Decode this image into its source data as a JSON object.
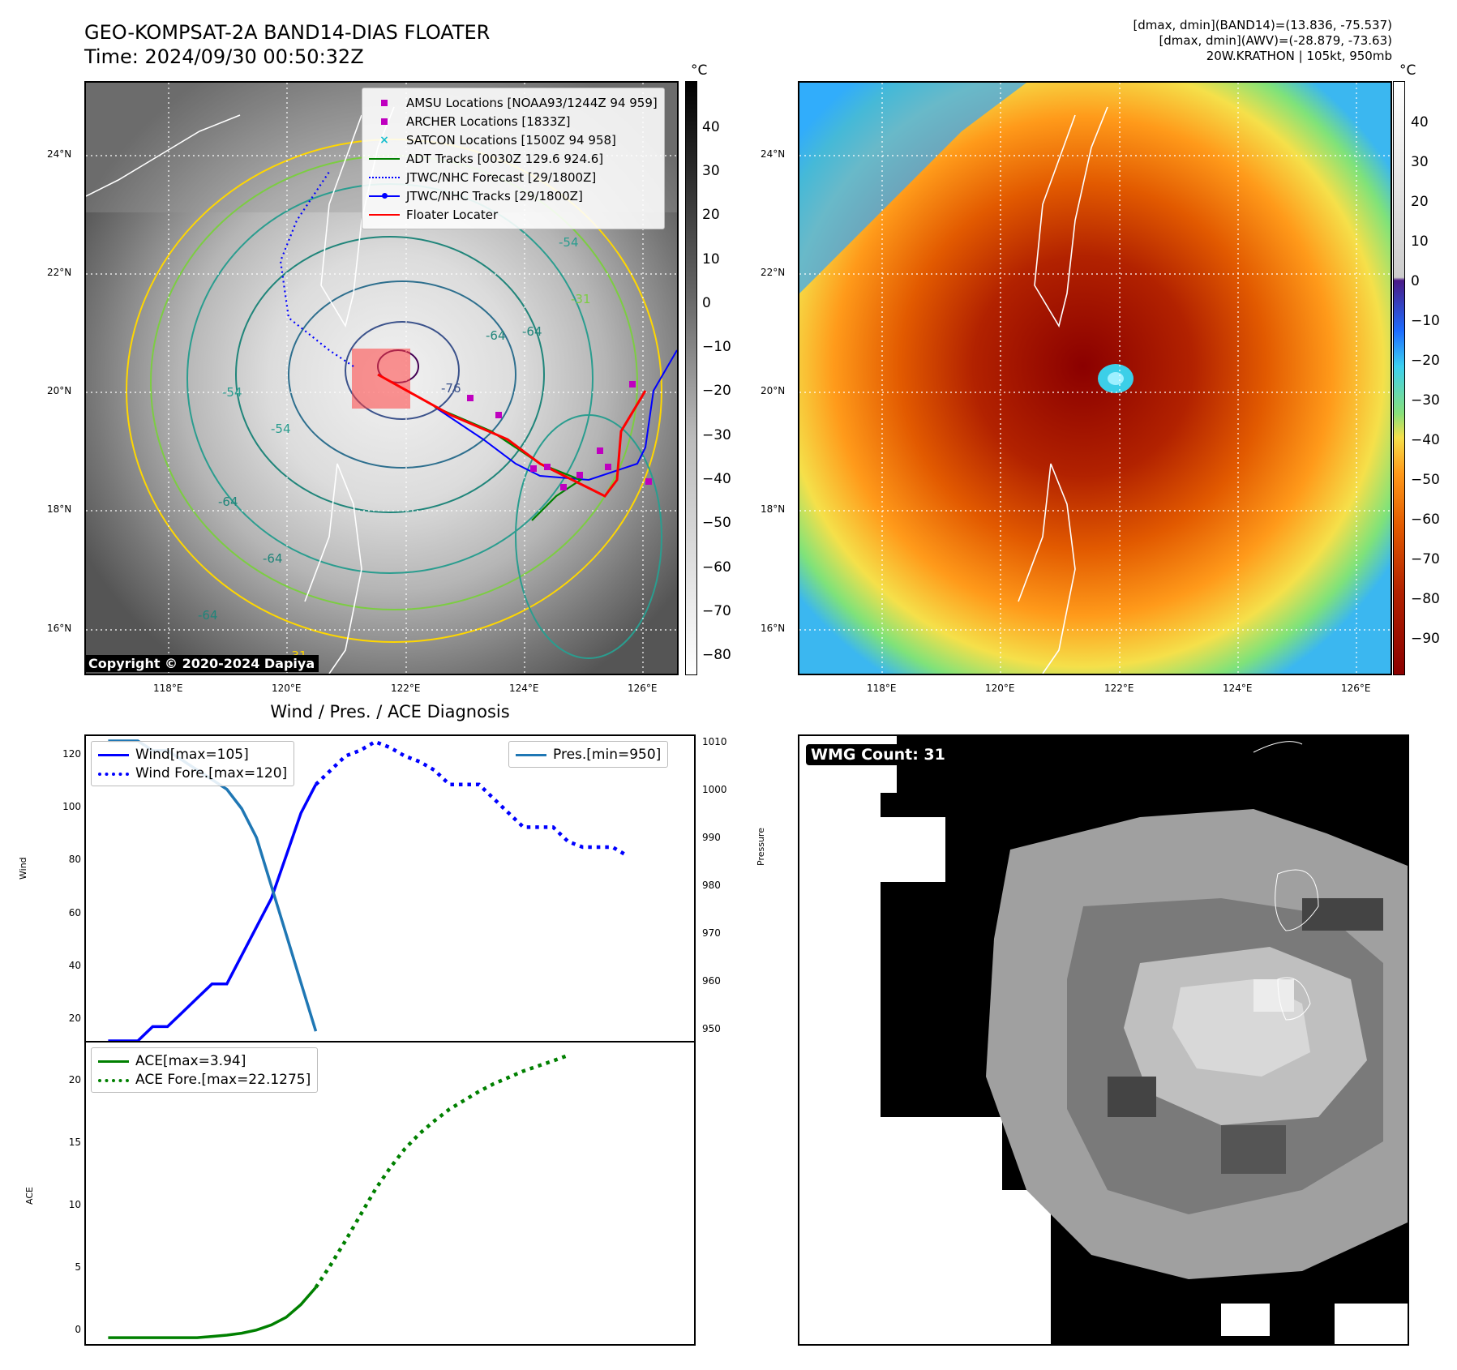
{
  "header": {
    "title_line1": "GEO-KOMPSAT-2A BAND14-DIAS FLOATER",
    "title_line2": "Time: 2024/09/30 00:50:32Z",
    "info_line1": "[dmax, dmin](BAND14)=(13.836, -75.537)",
    "info_line2": "[dmax, dmin](AWV)=(-28.879, -73.63)",
    "info_line3": "20W.KRATHON | 105kt, 950mb"
  },
  "map_axes": {
    "lat_labels": [
      "24°N",
      "22°N",
      "20°N",
      "18°N",
      "16°N"
    ],
    "lon_labels": [
      "118°E",
      "120°E",
      "122°E",
      "124°E",
      "126°E"
    ]
  },
  "map1": {
    "colorbar_unit": "°C",
    "colorbar_ticks": [
      "40",
      "30",
      "20",
      "10",
      "0",
      "−10",
      "−20",
      "−30",
      "−40",
      "−50",
      "−60",
      "−70",
      "−80"
    ],
    "copyright": "Copyright © 2020-2024 Dapiya",
    "contour_labels": [
      "-64",
      "-64",
      "-54",
      "-64",
      "-54",
      "-64",
      "-31",
      "-54",
      "-76",
      "-64",
      "-31"
    ],
    "legend": [
      {
        "label": "AMSU Locations [NOAA93/1244Z 94 959]",
        "marker": "square",
        "color": "#bf00bf"
      },
      {
        "label": "ARCHER Locations [1833Z]",
        "marker": "square",
        "color": "#bf00bf"
      },
      {
        "label": "SATCON Locations [1500Z 94 958]",
        "marker": "x",
        "color": "#17becf"
      },
      {
        "label": "ADT Tracks [0030Z 129.6 924.6]",
        "marker": "line",
        "color": "#008000"
      },
      {
        "label": "JTWC/NHC Forecast [29/1800Z]",
        "marker": "dotted",
        "color": "#0000ff"
      },
      {
        "label": "JTWC/NHC Tracks [29/1800Z]",
        "marker": "line-dot",
        "color": "#0000ff"
      },
      {
        "label": "Floater Locater",
        "marker": "line",
        "color": "#ff0000"
      }
    ]
  },
  "map2": {
    "colorbar_unit": "°C",
    "colorbar_ticks": [
      "40",
      "30",
      "20",
      "10",
      "0",
      "−10",
      "−20",
      "−30",
      "−40",
      "−50",
      "−60",
      "−70",
      "−80",
      "−90"
    ]
  },
  "diagnosis": {
    "title": "Wind / Pres. / ACE Diagnosis",
    "wind_ylabel": "Wind",
    "pressure_ylabel": "Pressure",
    "ace_ylabel": "ACE",
    "wind_ticks": [
      "120",
      "100",
      "80",
      "60",
      "40",
      "20"
    ],
    "pressure_ticks": [
      "1010",
      "1000",
      "990",
      "980",
      "970",
      "960",
      "950"
    ],
    "ace_ticks": [
      "20",
      "15",
      "10",
      "5",
      "0"
    ],
    "legend_wind": "Wind[max=105]",
    "legend_wind_fore": "Wind Fore.[max=120]",
    "legend_pres": "Pres.[min=950]",
    "legend_ace": "ACE[max=3.94]",
    "legend_ace_fore": "ACE Fore.[max=22.1275]"
  },
  "wmg": {
    "label": "WMG Count: 31"
  },
  "chart_data": [
    {
      "type": "line",
      "panel": "wind-pressure",
      "x": [
        0,
        1,
        2,
        3,
        4,
        5,
        6,
        7,
        8,
        9,
        10,
        11,
        12,
        13,
        14,
        15,
        16,
        17,
        18,
        19,
        20,
        21,
        22,
        23,
        24,
        25,
        26,
        27,
        28,
        29,
        30,
        31,
        32,
        33,
        34,
        35,
        36,
        37,
        38,
        39
      ],
      "series": [
        {
          "name": "Wind[max=105]",
          "axis": "left",
          "color": "#0000ff",
          "style": "solid",
          "points": [
            [
              0,
              15
            ],
            [
              1,
              15
            ],
            [
              2,
              15
            ],
            [
              3,
              20
            ],
            [
              4,
              20
            ],
            [
              5,
              25
            ],
            [
              6,
              30
            ],
            [
              7,
              35
            ],
            [
              8,
              35
            ],
            [
              9,
              45
            ],
            [
              10,
              55
            ],
            [
              11,
              65
            ],
            [
              12,
              80
            ],
            [
              13,
              95
            ],
            [
              14,
              105
            ]
          ]
        },
        {
          "name": "Wind Fore.[max=120]",
          "axis": "left",
          "color": "#0000ff",
          "style": "dotted",
          "points": [
            [
              14,
              105
            ],
            [
              15,
              110
            ],
            [
              16,
              115
            ],
            [
              17,
              117
            ],
            [
              18,
              120
            ],
            [
              19,
              118
            ],
            [
              20,
              115
            ],
            [
              21,
              113
            ],
            [
              22,
              110
            ],
            [
              23,
              105
            ],
            [
              24,
              105
            ],
            [
              25,
              105
            ],
            [
              26,
              100
            ],
            [
              27,
              95
            ],
            [
              28,
              90
            ],
            [
              29,
              90
            ],
            [
              30,
              90
            ],
            [
              31,
              85
            ],
            [
              32,
              83
            ],
            [
              33,
              83
            ],
            [
              34,
              83
            ],
            [
              35,
              80
            ]
          ]
        },
        {
          "name": "Pres.[min=950]",
          "axis": "right",
          "color": "#1f77b4",
          "style": "solid",
          "points": [
            [
              0,
              1010
            ],
            [
              1,
              1010
            ],
            [
              2,
              1010
            ],
            [
              3,
              1008
            ],
            [
              4,
              1008
            ],
            [
              5,
              1006
            ],
            [
              6,
              1004
            ],
            [
              7,
              1002
            ],
            [
              8,
              1000
            ],
            [
              9,
              996
            ],
            [
              10,
              990
            ],
            [
              11,
              980
            ],
            [
              12,
              970
            ],
            [
              13,
              960
            ],
            [
              14,
              950
            ]
          ]
        }
      ],
      "x_range": [
        -1.5,
        39.5
      ],
      "ylim_left": [
        15,
        122
      ],
      "ylim_right": [
        948,
        1011
      ],
      "legend_placement": [
        "upper left",
        "upper right"
      ]
    },
    {
      "type": "line",
      "panel": "ace",
      "series": [
        {
          "name": "ACE[max=3.94]",
          "color": "#008000",
          "style": "solid",
          "points": [
            [
              0,
              0
            ],
            [
              1,
              0
            ],
            [
              2,
              0
            ],
            [
              3,
              0
            ],
            [
              4,
              0
            ],
            [
              5,
              0
            ],
            [
              6,
              0
            ],
            [
              7,
              0.1
            ],
            [
              8,
              0.2
            ],
            [
              9,
              0.35
            ],
            [
              10,
              0.6
            ],
            [
              11,
              1.0
            ],
            [
              12,
              1.6
            ],
            [
              13,
              2.6
            ],
            [
              14,
              3.94
            ]
          ]
        },
        {
          "name": "ACE Fore.[max=22.1275]",
          "color": "#008000",
          "style": "dotted",
          "points": [
            [
              14,
              3.94
            ],
            [
              15,
              5.7
            ],
            [
              16,
              7.6
            ],
            [
              17,
              9.6
            ],
            [
              18,
              11.6
            ],
            [
              19,
              13.3
            ],
            [
              20,
              14.8
            ],
            [
              21,
              16.0
            ],
            [
              22,
              17.0
            ],
            [
              23,
              17.9
            ],
            [
              24,
              18.6
            ],
            [
              25,
              19.3
            ],
            [
              26,
              19.9
            ],
            [
              27,
              20.4
            ],
            [
              28,
              20.9
            ],
            [
              29,
              21.3
            ],
            [
              30,
              21.7
            ],
            [
              31,
              22.1275
            ]
          ]
        }
      ],
      "x_range": [
        -1.5,
        39.5
      ],
      "ylim": [
        -0.5,
        23.2
      ],
      "legend_placement": "upper left"
    }
  ]
}
